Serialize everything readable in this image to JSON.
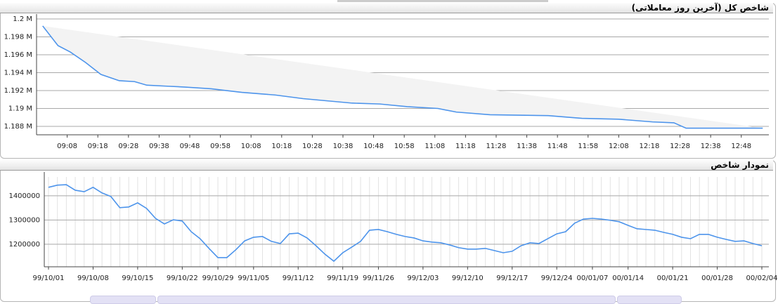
{
  "chart_data": [
    {
      "type": "line",
      "title": "شاخص کل (آخرین روز معاملاتی)",
      "color": "#4d94eb",
      "area_color": "#f3f3f3",
      "x": [
        "09:00",
        "09:05",
        "09:09",
        "09:14",
        "09:19",
        "09:25",
        "09:30",
        "09:34",
        "09:40",
        "09:46",
        "09:55",
        "10:05",
        "10:16",
        "10:25",
        "10:41",
        "10:50",
        "10:59",
        "11:09",
        "11:15",
        "11:26",
        "11:45",
        "11:56",
        "12:08",
        "12:19",
        "12:26",
        "12:30",
        "12:55"
      ],
      "values": [
        1199220,
        1197020,
        1196310,
        1195140,
        1193800,
        1193100,
        1193000,
        1192600,
        1192500,
        1192400,
        1192200,
        1191800,
        1191500,
        1191100,
        1190600,
        1190500,
        1190200,
        1190000,
        1189600,
        1189300,
        1189200,
        1188900,
        1188800,
        1188500,
        1188400,
        1187800,
        1187800
      ],
      "xlim": [
        "08:58",
        "12:57"
      ],
      "xticks": [
        "09:08",
        "09:18",
        "09:28",
        "09:38",
        "09:48",
        "09:58",
        "10:08",
        "10:18",
        "10:28",
        "10:38",
        "10:48",
        "10:58",
        "11:08",
        "11:18",
        "11:28",
        "11:38",
        "11:48",
        "11:58",
        "12:08",
        "12:18",
        "12:28",
        "12:38",
        "12:48"
      ],
      "ylim": [
        1187060,
        1200000
      ],
      "yticks": [
        {
          "value": 1188000,
          "label": "1.188 M"
        },
        {
          "value": 1190000,
          "label": "1.19 M"
        },
        {
          "value": 1192000,
          "label": "1.192 M"
        },
        {
          "value": 1194000,
          "label": "1.194 M"
        },
        {
          "value": 1196000,
          "label": "1.196 M"
        },
        {
          "value": 1198000,
          "label": "1.198 M"
        },
        {
          "value": 1200000,
          "label": "1.2 M"
        }
      ],
      "grid": true
    },
    {
      "type": "line",
      "title": "نمودار شاخص",
      "color": "#4d94eb",
      "categories": [
        "99/10/01",
        null,
        null,
        null,
        null,
        "99/10/08",
        null,
        null,
        null,
        null,
        "99/10/15",
        null,
        null,
        null,
        null,
        "99/10/22",
        null,
        null,
        null,
        "99/10/29",
        null,
        null,
        null,
        "99/11/05",
        null,
        null,
        null,
        null,
        "99/11/12",
        null,
        null,
        null,
        null,
        "99/11/19",
        null,
        null,
        null,
        "99/11/26",
        null,
        null,
        null,
        null,
        "99/12/03",
        null,
        null,
        null,
        null,
        "99/12/10",
        null,
        null,
        null,
        null,
        "99/12/17",
        null,
        null,
        null,
        null,
        "99/12/24",
        null,
        null,
        null,
        "00/01/07",
        null,
        null,
        null,
        "00/01/14",
        null,
        null,
        null,
        null,
        "00/01/21",
        null,
        null,
        null,
        null,
        "00/01/28",
        null,
        null,
        null,
        null,
        "00/02/04"
      ],
      "values": [
        1435000,
        1444000,
        1446000,
        1423000,
        1417000,
        1435000,
        1412000,
        1397000,
        1351000,
        1354000,
        1371000,
        1348000,
        1307000,
        1284000,
        1301000,
        1296000,
        1252000,
        1223000,
        1183000,
        1145000,
        1145000,
        1177000,
        1214000,
        1229000,
        1232000,
        1212000,
        1203000,
        1243000,
        1246000,
        1226000,
        1194000,
        1159000,
        1130000,
        1165000,
        1188000,
        1212000,
        1258000,
        1261000,
        1252000,
        1241000,
        1232000,
        1226000,
        1214000,
        1209000,
        1206000,
        1197000,
        1186000,
        1180000,
        1180000,
        1183000,
        1174000,
        1165000,
        1171000,
        1194000,
        1206000,
        1203000,
        1223000,
        1243000,
        1252000,
        1287000,
        1304000,
        1307000,
        1304000,
        1299000,
        1293000,
        1278000,
        1264000,
        1261000,
        1258000,
        1249000,
        1241000,
        1229000,
        1223000,
        1241000,
        1241000,
        1229000,
        1220000,
        1212000,
        1214000,
        1203000,
        1194000
      ],
      "ylim": [
        1107000,
        1478000
      ],
      "yticks": [
        1200000,
        1300000,
        1400000
      ],
      "grid": true
    }
  ]
}
